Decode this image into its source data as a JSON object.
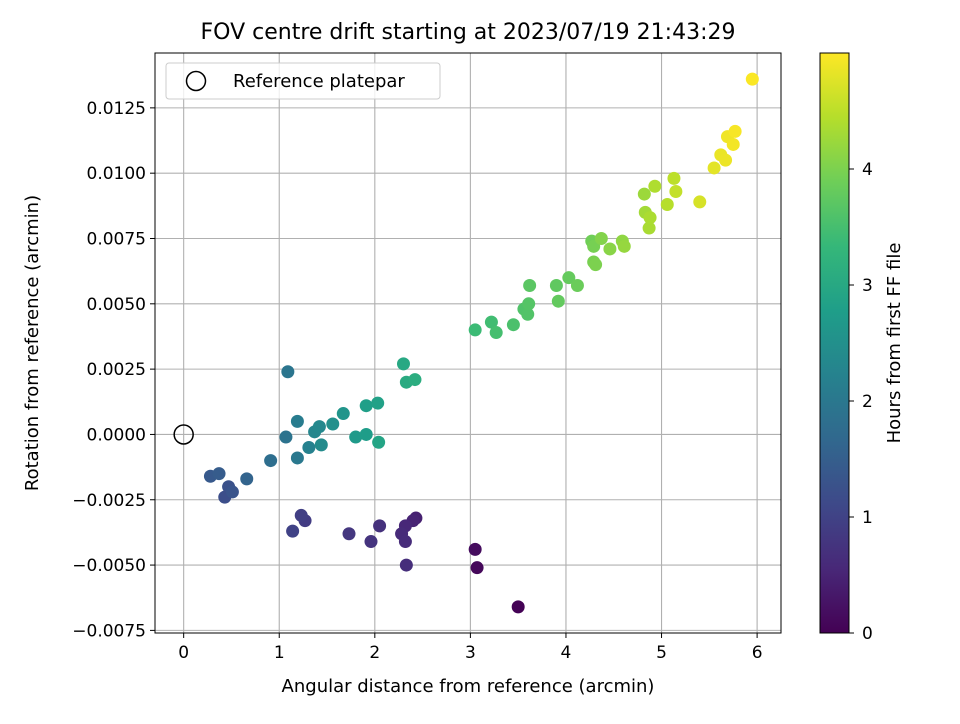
{
  "chart_data": {
    "type": "scatter",
    "title": "FOV centre drift starting at 2023/07/19 21:43:29",
    "xlabel": "Angular distance from reference (arcmin)",
    "ylabel": "Rotation from reference (arcmin)",
    "xlim": [
      -0.3,
      6.25
    ],
    "ylim": [
      -0.0076,
      0.0146
    ],
    "x_ticks": [
      0,
      1,
      2,
      3,
      4,
      5,
      6
    ],
    "x_tick_labels": [
      "0",
      "1",
      "2",
      "3",
      "4",
      "5",
      "6"
    ],
    "y_ticks": [
      -0.0075,
      -0.005,
      -0.0025,
      0.0,
      0.0025,
      0.005,
      0.0075,
      0.01,
      0.0125
    ],
    "y_tick_labels": [
      "−0.0075",
      "−0.0050",
      "−0.0025",
      "0.0000",
      "0.0025",
      "0.0050",
      "0.0075",
      "0.0100",
      "0.0125"
    ],
    "grid": true,
    "legend": {
      "position": "top-left",
      "label": "Reference platepar"
    },
    "reference_point": {
      "x": 0,
      "y": 0
    },
    "colorbar": {
      "label": "Hours from first FF file",
      "range": [
        0,
        5
      ],
      "ticks": [
        0,
        1,
        2,
        3,
        4
      ],
      "tick_labels": [
        "0",
        "1",
        "2",
        "3",
        "4"
      ],
      "colormap": [
        "#440154",
        "#482878",
        "#3e4989",
        "#31688e",
        "#26828e",
        "#1f9e89",
        "#35b779",
        "#6ece58",
        "#b5de2b",
        "#fde725"
      ]
    },
    "points": [
      {
        "x": 3.5,
        "y": -0.0066,
        "h": 0.02
      },
      {
        "x": 3.07,
        "y": -0.0051,
        "h": 0.1
      },
      {
        "x": 3.05,
        "y": -0.0044,
        "h": 0.15
      },
      {
        "x": 2.43,
        "y": -0.0032,
        "h": 0.45
      },
      {
        "x": 2.4,
        "y": -0.0033,
        "h": 0.5
      },
      {
        "x": 2.32,
        "y": -0.0035,
        "h": 0.55
      },
      {
        "x": 2.28,
        "y": -0.0038,
        "h": 0.6
      },
      {
        "x": 2.32,
        "y": -0.0041,
        "h": 0.62
      },
      {
        "x": 2.33,
        "y": -0.005,
        "h": 0.65
      },
      {
        "x": 2.05,
        "y": -0.0035,
        "h": 0.7
      },
      {
        "x": 1.96,
        "y": -0.0041,
        "h": 0.75
      },
      {
        "x": 1.73,
        "y": -0.0038,
        "h": 0.8
      },
      {
        "x": 1.27,
        "y": -0.0033,
        "h": 0.9
      },
      {
        "x": 1.23,
        "y": -0.0031,
        "h": 0.95
      },
      {
        "x": 1.14,
        "y": -0.0037,
        "h": 1.0
      },
      {
        "x": 0.43,
        "y": -0.0024,
        "h": 1.2
      },
      {
        "x": 0.47,
        "y": -0.002,
        "h": 1.25
      },
      {
        "x": 0.51,
        "y": -0.0022,
        "h": 1.3
      },
      {
        "x": 0.28,
        "y": -0.0016,
        "h": 1.4
      },
      {
        "x": 0.37,
        "y": -0.0015,
        "h": 1.45
      },
      {
        "x": 0.66,
        "y": -0.0017,
        "h": 1.6
      },
      {
        "x": 0.91,
        "y": -0.001,
        "h": 1.8
      },
      {
        "x": 1.07,
        "y": -0.0001,
        "h": 1.9
      },
      {
        "x": 1.09,
        "y": 0.0024,
        "h": 1.95
      },
      {
        "x": 1.19,
        "y": -0.0009,
        "h": 2.0
      },
      {
        "x": 1.19,
        "y": 0.0005,
        "h": 2.1
      },
      {
        "x": 1.31,
        "y": -0.0005,
        "h": 2.2
      },
      {
        "x": 1.37,
        "y": 0.0001,
        "h": 2.3
      },
      {
        "x": 1.42,
        "y": 0.0003,
        "h": 2.35
      },
      {
        "x": 1.44,
        "y": -0.0004,
        "h": 2.4
      },
      {
        "x": 1.56,
        "y": 0.0004,
        "h": 2.5
      },
      {
        "x": 1.67,
        "y": 0.0008,
        "h": 2.6
      },
      {
        "x": 1.8,
        "y": -0.0001,
        "h": 2.7
      },
      {
        "x": 1.91,
        "y": 0.0,
        "h": 2.75
      },
      {
        "x": 1.91,
        "y": 0.0011,
        "h": 2.8
      },
      {
        "x": 2.03,
        "y": 0.0012,
        "h": 2.85
      },
      {
        "x": 2.04,
        "y": -0.0003,
        "h": 2.9
      },
      {
        "x": 2.3,
        "y": 0.0027,
        "h": 3.0
      },
      {
        "x": 2.33,
        "y": 0.002,
        "h": 3.05
      },
      {
        "x": 2.42,
        "y": 0.0021,
        "h": 3.1
      },
      {
        "x": 3.05,
        "y": 0.004,
        "h": 3.4
      },
      {
        "x": 3.22,
        "y": 0.0043,
        "h": 3.45
      },
      {
        "x": 3.27,
        "y": 0.0039,
        "h": 3.5
      },
      {
        "x": 3.45,
        "y": 0.0042,
        "h": 3.55
      },
      {
        "x": 3.56,
        "y": 0.0048,
        "h": 3.6
      },
      {
        "x": 3.6,
        "y": 0.0046,
        "h": 3.62
      },
      {
        "x": 3.61,
        "y": 0.005,
        "h": 3.65
      },
      {
        "x": 3.62,
        "y": 0.0057,
        "h": 3.7
      },
      {
        "x": 3.9,
        "y": 0.0057,
        "h": 3.75
      },
      {
        "x": 3.92,
        "y": 0.0051,
        "h": 3.78
      },
      {
        "x": 4.03,
        "y": 0.006,
        "h": 3.8
      },
      {
        "x": 4.12,
        "y": 0.0057,
        "h": 3.85
      },
      {
        "x": 4.27,
        "y": 0.0074,
        "h": 3.9
      },
      {
        "x": 4.29,
        "y": 0.0072,
        "h": 3.95
      },
      {
        "x": 4.29,
        "y": 0.0066,
        "h": 3.97
      },
      {
        "x": 4.31,
        "y": 0.0065,
        "h": 4.0
      },
      {
        "x": 4.37,
        "y": 0.0075,
        "h": 4.05
      },
      {
        "x": 4.46,
        "y": 0.0071,
        "h": 4.1
      },
      {
        "x": 4.59,
        "y": 0.0074,
        "h": 4.15
      },
      {
        "x": 4.61,
        "y": 0.0072,
        "h": 4.2
      },
      {
        "x": 4.82,
        "y": 0.0092,
        "h": 4.25
      },
      {
        "x": 4.83,
        "y": 0.0085,
        "h": 4.3
      },
      {
        "x": 4.87,
        "y": 0.0079,
        "h": 4.35
      },
      {
        "x": 4.88,
        "y": 0.0083,
        "h": 4.37
      },
      {
        "x": 4.93,
        "y": 0.0095,
        "h": 4.4
      },
      {
        "x": 5.06,
        "y": 0.0088,
        "h": 4.45
      },
      {
        "x": 5.13,
        "y": 0.0098,
        "h": 4.5
      },
      {
        "x": 5.15,
        "y": 0.0093,
        "h": 4.55
      },
      {
        "x": 5.4,
        "y": 0.0089,
        "h": 4.7
      },
      {
        "x": 5.55,
        "y": 0.0102,
        "h": 4.8
      },
      {
        "x": 5.62,
        "y": 0.0107,
        "h": 4.85
      },
      {
        "x": 5.67,
        "y": 0.0105,
        "h": 4.87
      },
      {
        "x": 5.69,
        "y": 0.0114,
        "h": 4.9
      },
      {
        "x": 5.75,
        "y": 0.0111,
        "h": 4.92
      },
      {
        "x": 5.77,
        "y": 0.0116,
        "h": 4.95
      },
      {
        "x": 5.95,
        "y": 0.0136,
        "h": 4.98
      }
    ]
  }
}
